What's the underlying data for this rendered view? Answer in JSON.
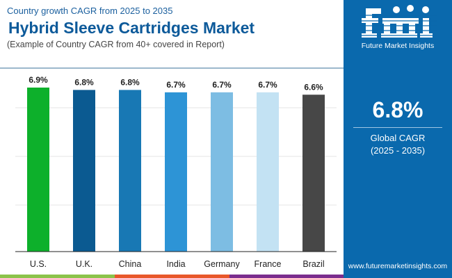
{
  "header": {
    "subtitle": "Country growth CAGR from 2025 to 2035",
    "title": "Hybrid Sleeve Cartridges Market",
    "note": "(Example of Country CAGR from 40+ covered in Report)"
  },
  "panel": {
    "logo_text": "Future Market Insights",
    "global_cagr": "6.8%",
    "global_label": "Global CAGR",
    "period": "(2025 - 2035)",
    "url": "www.futuremarketinsights.com",
    "logo_alt": "fmi"
  },
  "chart_data": {
    "type": "bar",
    "categories": [
      "U.S.",
      "U.K.",
      "China",
      "India",
      "Germany",
      "France",
      "Brazil"
    ],
    "values": [
      6.9,
      6.8,
      6.8,
      6.7,
      6.7,
      6.7,
      6.6
    ],
    "labels": [
      "6.9%",
      "6.8%",
      "6.8%",
      "6.7%",
      "6.7%",
      "6.7%",
      "6.6%"
    ],
    "colors": [
      "#0db02b",
      "#0b5a91",
      "#1878b4",
      "#2d94d6",
      "#7dbde3",
      "#c3e2f3",
      "#474747"
    ],
    "ylim": [
      0,
      6.9
    ],
    "grid": true,
    "title": "",
    "xlabel": "",
    "ylabel": ""
  },
  "stripes": [
    "#8bc34a",
    "#e8572a",
    "#7b2d8e"
  ]
}
